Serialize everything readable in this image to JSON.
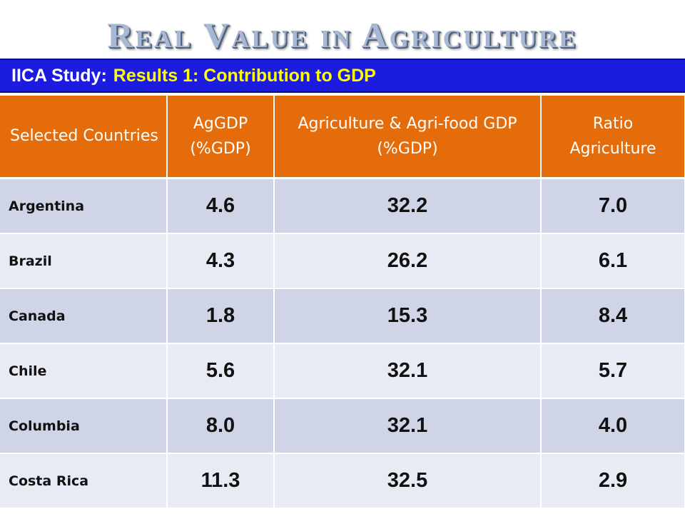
{
  "slide": {
    "title": "Real Value in Agriculture",
    "subtitle_prefix": "IICA Study:",
    "subtitle_main": "Results 1: Contribution to GDP"
  },
  "table": {
    "headers": [
      "Selected Countries",
      "AgGDP (%GDP)",
      "Agriculture & Agri-food GDP (%GDP)",
      "Ratio Agriculture"
    ],
    "rows": [
      [
        "Argentina",
        "4.6",
        "32.2",
        "7.0"
      ],
      [
        "Brazil",
        "4.3",
        "26.2",
        "6.1"
      ],
      [
        "Canada",
        "1.8",
        "15.3",
        "8.4"
      ],
      [
        "Chile",
        "5.6",
        "32.1",
        "5.7"
      ],
      [
        "Columbia",
        "8.0",
        "32.1",
        "4.0"
      ],
      [
        "Costa Rica",
        "11.3",
        "32.5",
        "2.9"
      ]
    ]
  },
  "colors": {
    "header_bg": "#e46c0a",
    "subtitle_bg": "#1c1ce0",
    "subtitle_highlight": "#ffff00",
    "row_odd": "#cfd5e6",
    "row_even": "#e8ebf3"
  }
}
